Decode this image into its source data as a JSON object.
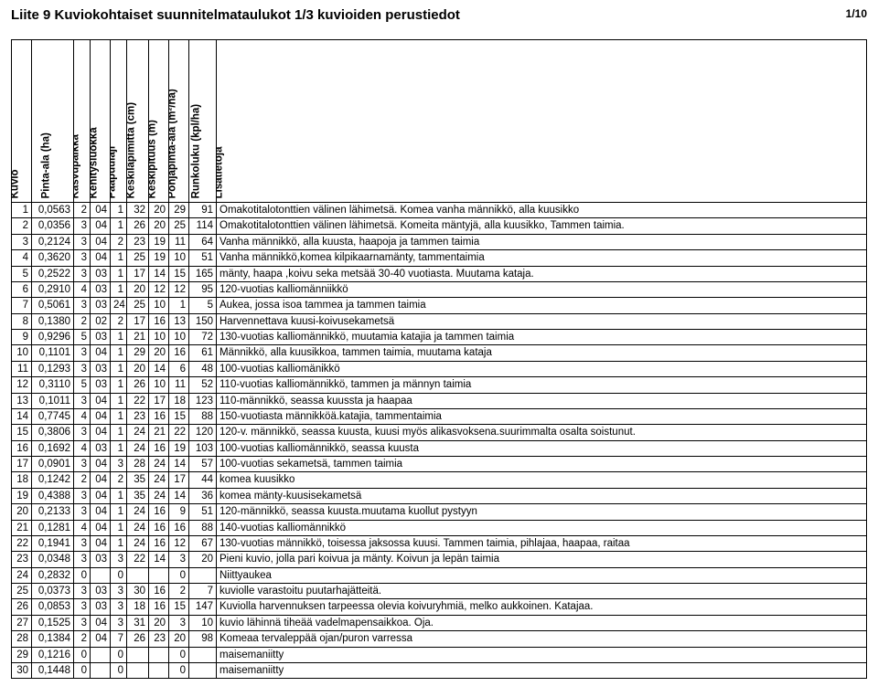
{
  "title": "Liite 9 Kuviokohtaiset suunnitelmataulukot 1/3 kuvioiden perustiedot",
  "page_number": "1/10",
  "columns": [
    {
      "key": "kuvio",
      "label": "Kuvio",
      "class": "c-kuvio"
    },
    {
      "key": "pinta",
      "label": "Pinta-ala (ha)",
      "class": "c-area"
    },
    {
      "key": "kasvu",
      "label": "Kasvupaikka",
      "class": "c-kasvu"
    },
    {
      "key": "kehitys",
      "label": "Kehitysluokka",
      "class": "c-kehitys"
    },
    {
      "key": "paa",
      "label": "Pääpuulaji",
      "class": "c-paa"
    },
    {
      "key": "kl",
      "label": "Keskiläpimitta (cm)",
      "class": "c-kl"
    },
    {
      "key": "kp",
      "label": "Keskipituus (m)",
      "class": "c-kp"
    },
    {
      "key": "pa",
      "label": "Pohjapinta-ala (m²/ha)",
      "class": "c-pa"
    },
    {
      "key": "rl",
      "label": "Runkoluku (kpl/ha)",
      "class": "c-rl"
    },
    {
      "key": "lisa",
      "label": "Lisätietoja",
      "class": "c-lisa"
    }
  ],
  "rows": [
    {
      "kuvio": "1",
      "pinta": "0,0563",
      "kasvu": "2",
      "kehitys": "04",
      "paa": "1",
      "kl": "32",
      "kp": "20",
      "pa": "29",
      "rl": "91",
      "lisa": "Omakotitalotonttien välinen lähimetsä. Komea vanha männikkö, alla kuusikko"
    },
    {
      "kuvio": "2",
      "pinta": "0,0356",
      "kasvu": "3",
      "kehitys": "04",
      "paa": "1",
      "kl": "26",
      "kp": "20",
      "pa": "25",
      "rl": "114",
      "lisa": "Omakotitalotonttien välinen lähimetsä. Komeita mäntyjä, alla kuusikko, Tammen taimia."
    },
    {
      "kuvio": "3",
      "pinta": "0,2124",
      "kasvu": "3",
      "kehitys": "04",
      "paa": "2",
      "kl": "23",
      "kp": "19",
      "pa": "11",
      "rl": "64",
      "lisa": "Vanha männikkö, alla kuusta, haapoja  ja tammen taimia"
    },
    {
      "kuvio": "4",
      "pinta": "0,3620",
      "kasvu": "3",
      "kehitys": "04",
      "paa": "1",
      "kl": "25",
      "kp": "19",
      "pa": "10",
      "rl": "51",
      "lisa": "Vanha männikkö,komea kilpikaarnamänty, tammentaimia"
    },
    {
      "kuvio": "5",
      "pinta": "0,2522",
      "kasvu": "3",
      "kehitys": "03",
      "paa": "1",
      "kl": "17",
      "kp": "14",
      "pa": "15",
      "rl": "165",
      "lisa": "mänty, haapa ,koivu seka metsää 30-40 vuotiasta. Muutama kataja."
    },
    {
      "kuvio": "6",
      "pinta": "0,2910",
      "kasvu": "4",
      "kehitys": "03",
      "paa": "1",
      "kl": "20",
      "kp": "12",
      "pa": "12",
      "rl": "95",
      "lisa": "120-vuotias kalliomänniikkö"
    },
    {
      "kuvio": "7",
      "pinta": "0,5061",
      "kasvu": "3",
      "kehitys": "03",
      "paa": "24",
      "kl": "25",
      "kp": "10",
      "pa": "1",
      "rl": "5",
      "lisa": "Aukea, jossa isoa  tammea ja tammen taimia"
    },
    {
      "kuvio": "8",
      "pinta": "0,1380",
      "kasvu": "2",
      "kehitys": "02",
      "paa": "2",
      "kl": "17",
      "kp": "16",
      "pa": "13",
      "rl": "150",
      "lisa": "Harvennettava kuusi-koivusekametsä"
    },
    {
      "kuvio": "9",
      "pinta": "0,9296",
      "kasvu": "5",
      "kehitys": "03",
      "paa": "1",
      "kl": "21",
      "kp": "10",
      "pa": "10",
      "rl": "72",
      "lisa": "130-vuotias kalliomännikkö, muutamia katajia ja tammen taimia"
    },
    {
      "kuvio": "10",
      "pinta": "0,1101",
      "kasvu": "3",
      "kehitys": "04",
      "paa": "1",
      "kl": "29",
      "kp": "20",
      "pa": "16",
      "rl": "61",
      "lisa": "Männikkö, alla kuusikkoa, tammen taimia, muutama kataja"
    },
    {
      "kuvio": "11",
      "pinta": "0,1293",
      "kasvu": "3",
      "kehitys": "03",
      "paa": "1",
      "kl": "20",
      "kp": "14",
      "pa": "6",
      "rl": "48",
      "lisa": "100-vuotias kalliomänikkö"
    },
    {
      "kuvio": "12",
      "pinta": "0,3110",
      "kasvu": "5",
      "kehitys": "03",
      "paa": "1",
      "kl": "26",
      "kp": "10",
      "pa": "11",
      "rl": "52",
      "lisa": "110-vuotias kalliomännikkö, tammen ja männyn taimia"
    },
    {
      "kuvio": "13",
      "pinta": "0,1011",
      "kasvu": "3",
      "kehitys": "04",
      "paa": "1",
      "kl": "22",
      "kp": "17",
      "pa": "18",
      "rl": "123",
      "lisa": "110-männikkö, seassa kuussta ja haapaa"
    },
    {
      "kuvio": "14",
      "pinta": "0,7745",
      "kasvu": "4",
      "kehitys": "04",
      "paa": "1",
      "kl": "23",
      "kp": "16",
      "pa": "15",
      "rl": "88",
      "lisa": "150-vuotiasta männikköä.katajia, tammentaimia"
    },
    {
      "kuvio": "15",
      "pinta": "0,3806",
      "kasvu": "3",
      "kehitys": "04",
      "paa": "1",
      "kl": "24",
      "kp": "21",
      "pa": "22",
      "rl": "120",
      "lisa": "120-v. männikkö, seassa kuusta, kuusi myös alikasvoksena.suurimmalta osalta soistunut."
    },
    {
      "kuvio": "16",
      "pinta": "0,1692",
      "kasvu": "4",
      "kehitys": "03",
      "paa": "1",
      "kl": "24",
      "kp": "16",
      "pa": "19",
      "rl": "103",
      "lisa": "100-vuotias kalliomännikkö, seassa kuusta"
    },
    {
      "kuvio": "17",
      "pinta": "0,0901",
      "kasvu": "3",
      "kehitys": "04",
      "paa": "3",
      "kl": "28",
      "kp": "24",
      "pa": "14",
      "rl": "57",
      "lisa": "100-vuotias sekametsä, tammen taimia"
    },
    {
      "kuvio": "18",
      "pinta": "0,1242",
      "kasvu": "2",
      "kehitys": "04",
      "paa": "2",
      "kl": "35",
      "kp": "24",
      "pa": "17",
      "rl": "44",
      "lisa": "komea kuusikko"
    },
    {
      "kuvio": "19",
      "pinta": "0,4388",
      "kasvu": "3",
      "kehitys": "04",
      "paa": "1",
      "kl": "35",
      "kp": "24",
      "pa": "14",
      "rl": "36",
      "lisa": "komea mänty-kuusisekametsä"
    },
    {
      "kuvio": "20",
      "pinta": "0,2133",
      "kasvu": "3",
      "kehitys": "04",
      "paa": "1",
      "kl": "24",
      "kp": "16",
      "pa": "9",
      "rl": "51",
      "lisa": "120-männikkö, seassa kuusta.muutama kuollut pystyyn"
    },
    {
      "kuvio": "21",
      "pinta": "0,1281",
      "kasvu": "4",
      "kehitys": "04",
      "paa": "1",
      "kl": "24",
      "kp": "16",
      "pa": "16",
      "rl": "88",
      "lisa": "140-vuotias kalliomännikkö"
    },
    {
      "kuvio": "22",
      "pinta": "0,1941",
      "kasvu": "3",
      "kehitys": "04",
      "paa": "1",
      "kl": "24",
      "kp": "16",
      "pa": "12",
      "rl": "67",
      "lisa": "130-vuotias männikkö, toisessa jaksossa kuusi. Tammen taimia, pihlajaa, haapaa, raitaa"
    },
    {
      "kuvio": "23",
      "pinta": "0,0348",
      "kasvu": "3",
      "kehitys": "03",
      "paa": "3",
      "kl": "22",
      "kp": "14",
      "pa": "3",
      "rl": "20",
      "lisa": "Pieni kuvio, jolla pari koivua ja mänty. Koivun ja lepän taimia"
    },
    {
      "kuvio": "24",
      "pinta": "0,2832",
      "kasvu": "0",
      "kehitys": "",
      "paa": "0",
      "kl": "",
      "kp": "",
      "pa": "0",
      "rl": "",
      "lisa": "Niittyaukea"
    },
    {
      "kuvio": "25",
      "pinta": "0,0373",
      "kasvu": "3",
      "kehitys": "03",
      "paa": "3",
      "kl": "30",
      "kp": "16",
      "pa": "2",
      "rl": "7",
      "lisa": "kuviolle varastoitu puutarhajätteitä."
    },
    {
      "kuvio": "26",
      "pinta": "0,0853",
      "kasvu": "3",
      "kehitys": "03",
      "paa": "3",
      "kl": "18",
      "kp": "16",
      "pa": "15",
      "rl": "147",
      "lisa": "Kuviolla harvennuksen tarpeessa olevia koivuryhmiä, melko aukkoinen. Katajaa."
    },
    {
      "kuvio": "27",
      "pinta": "0,1525",
      "kasvu": "3",
      "kehitys": "04",
      "paa": "3",
      "kl": "31",
      "kp": "20",
      "pa": "3",
      "rl": "10",
      "lisa": "kuvio lähinnä tiheää vadelmapensaikkoa. Oja."
    },
    {
      "kuvio": "28",
      "pinta": "0,1384",
      "kasvu": "2",
      "kehitys": "04",
      "paa": "7",
      "kl": "26",
      "kp": "23",
      "pa": "20",
      "rl": "98",
      "lisa": "Komeaa tervaleppää ojan/puron varressa"
    },
    {
      "kuvio": "29",
      "pinta": "0,1216",
      "kasvu": "0",
      "kehitys": "",
      "paa": "0",
      "kl": "",
      "kp": "",
      "pa": "0",
      "rl": "",
      "lisa": "maisemaniitty"
    },
    {
      "kuvio": "30",
      "pinta": "0,1448",
      "kasvu": "0",
      "kehitys": "",
      "paa": "0",
      "kl": "",
      "kp": "",
      "pa": "0",
      "rl": "",
      "lisa": "maisemaniitty"
    }
  ]
}
